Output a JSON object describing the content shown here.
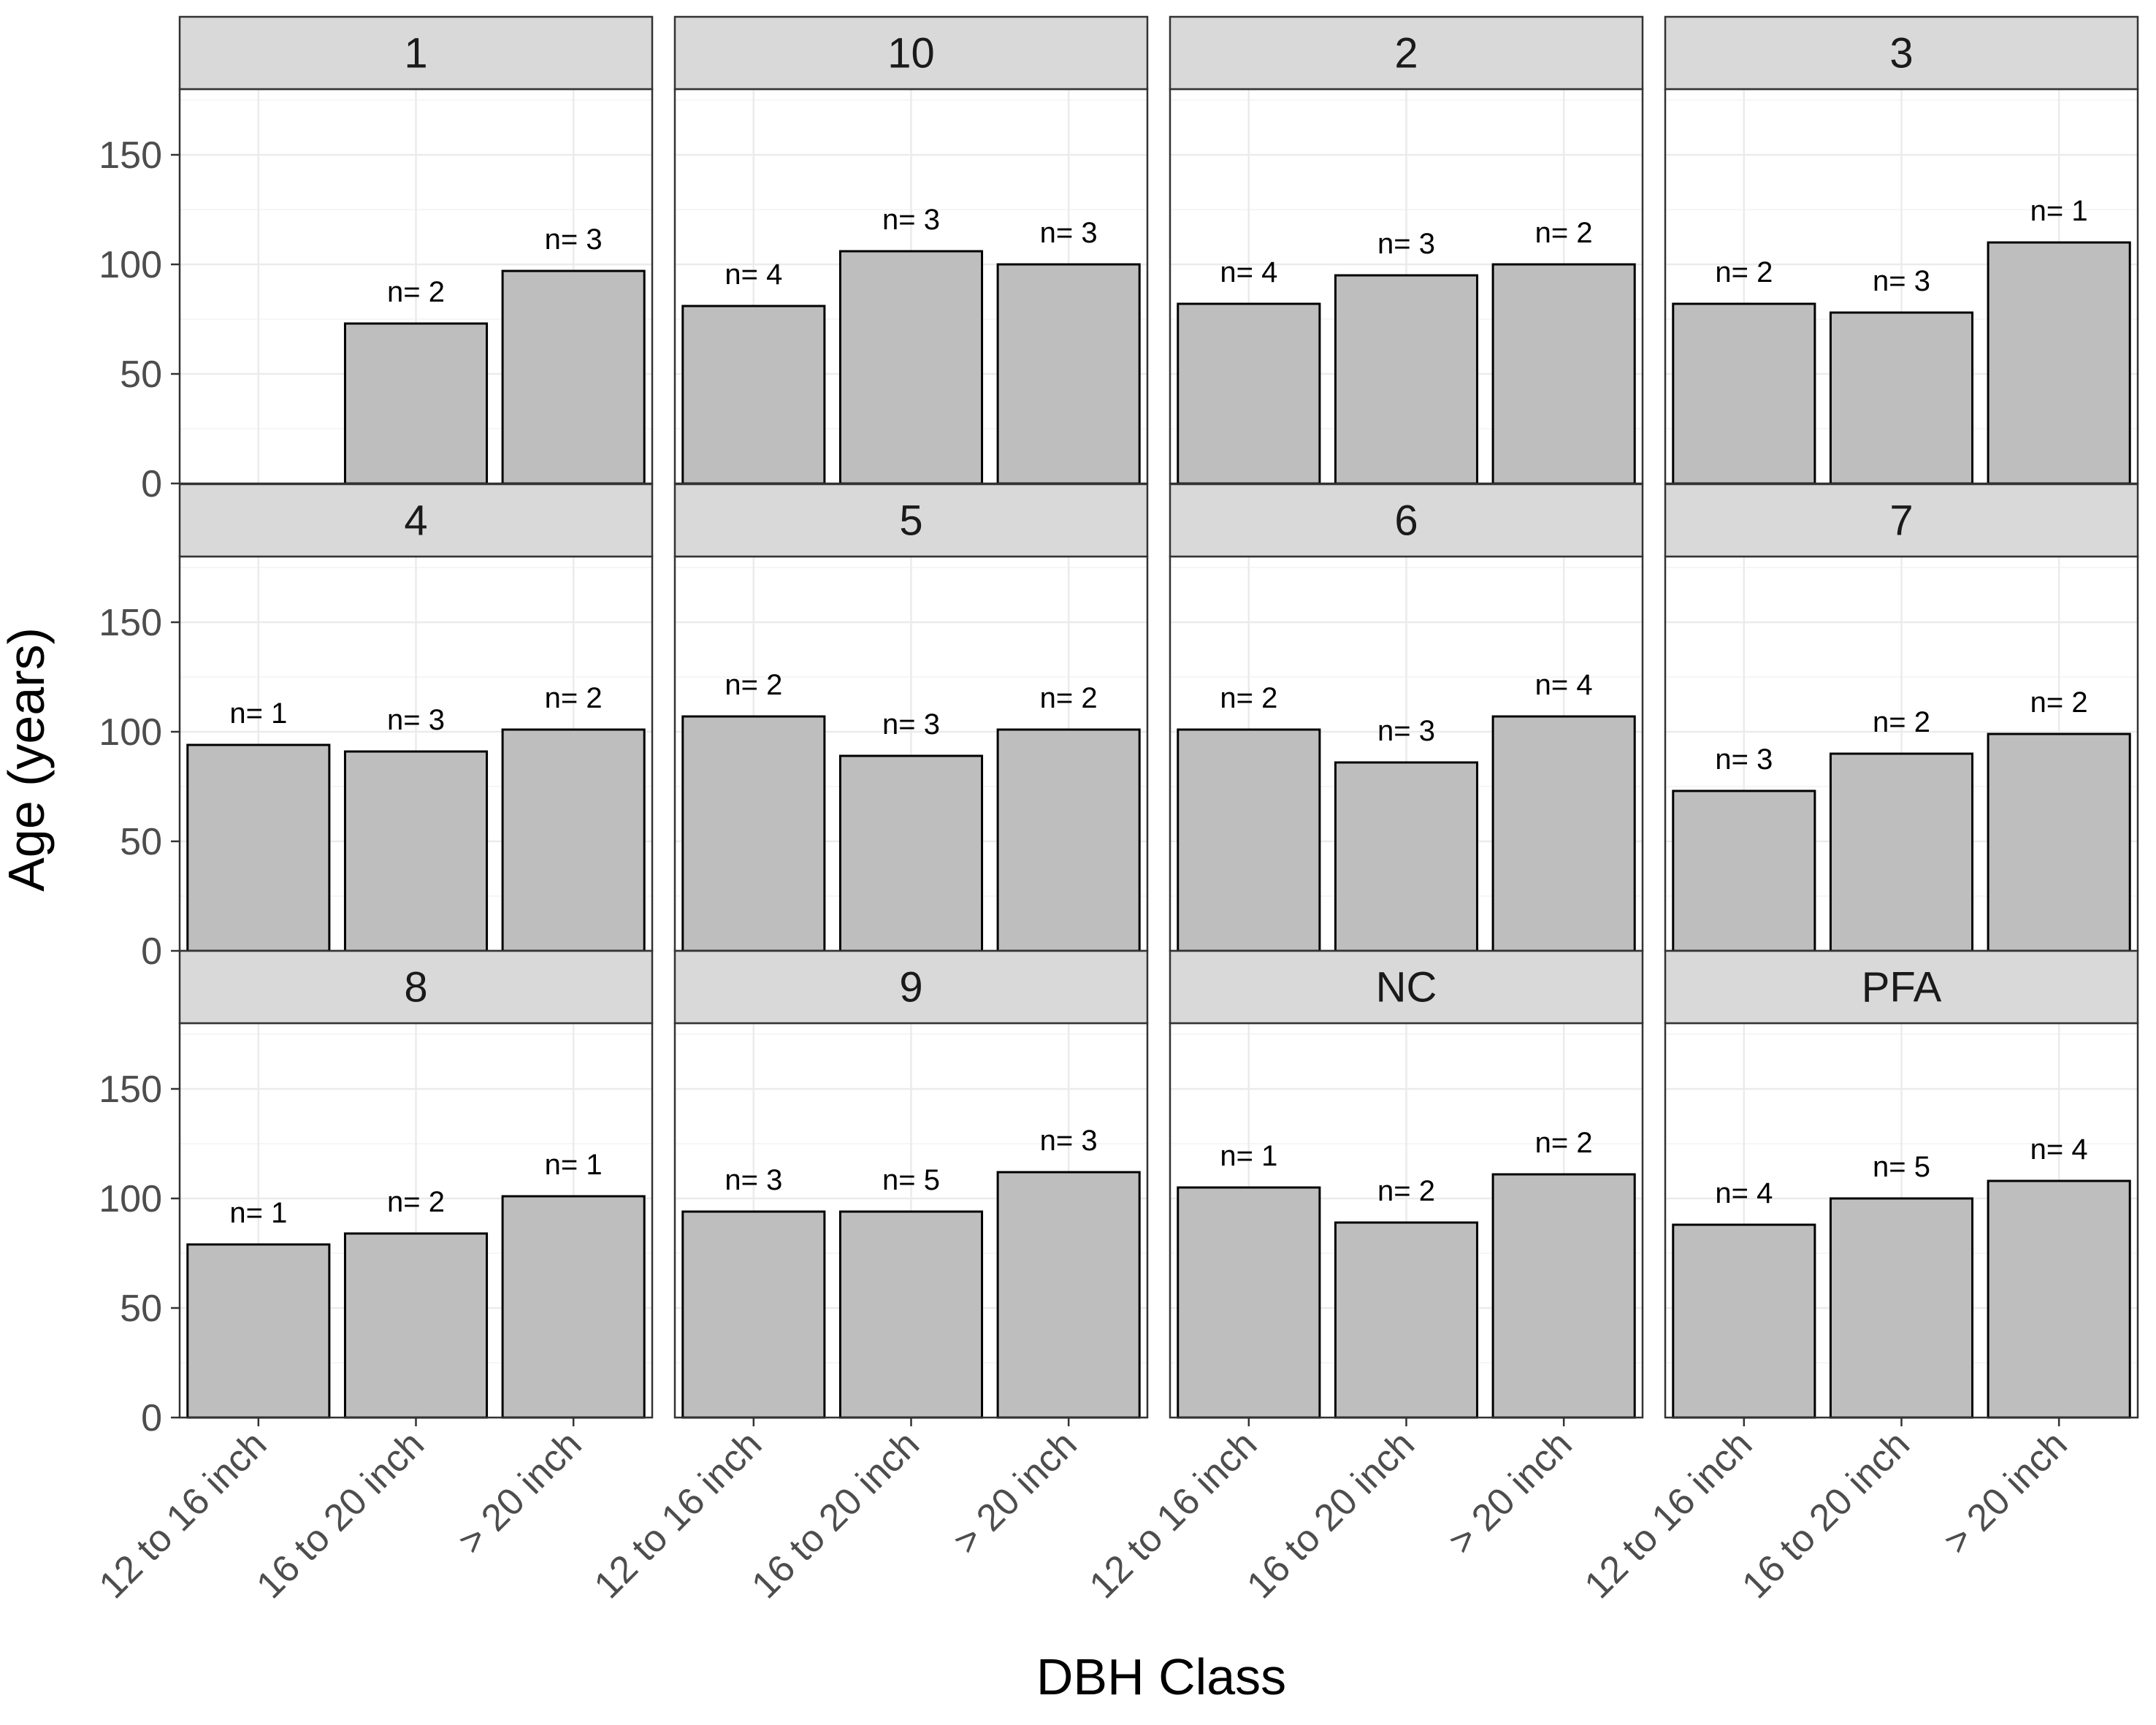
{
  "chart_data": {
    "type": "bar",
    "xlabel": "DBH Class",
    "ylabel": "Age (years)",
    "ylim": [
      0,
      180
    ],
    "yticks": [
      0,
      50,
      100,
      150
    ],
    "categories": [
      "12 to 16 inch",
      "16 to 20 inch",
      "> 20 inch"
    ],
    "grid": true,
    "colors": {
      "bar_fill": "#bebebe",
      "bar_stroke": "#000000",
      "strip_fill": "#d9d9d9",
      "grid_major": "#ebebeb",
      "grid_minor": "#f4f4f4",
      "panel_border": "#333333"
    },
    "facets": [
      {
        "label": "1",
        "values": [
          null,
          73,
          97
        ],
        "labels": [
          "",
          "n= 2",
          "n= 3"
        ]
      },
      {
        "label": "10",
        "values": [
          81,
          106,
          100
        ],
        "labels": [
          "n= 4",
          "n= 3",
          "n= 3"
        ]
      },
      {
        "label": "2",
        "values": [
          82,
          95,
          100
        ],
        "labels": [
          "n= 4",
          "n= 3",
          "n= 2"
        ]
      },
      {
        "label": "3",
        "values": [
          82,
          78,
          110
        ],
        "labels": [
          "n= 2",
          "n= 3",
          "n= 1"
        ]
      },
      {
        "label": "4",
        "values": [
          94,
          91,
          101
        ],
        "labels": [
          "n= 1",
          "n= 3",
          "n= 2"
        ]
      },
      {
        "label": "5",
        "values": [
          107,
          89,
          101
        ],
        "labels": [
          "n= 2",
          "n= 3",
          "n= 2"
        ]
      },
      {
        "label": "6",
        "values": [
          101,
          86,
          107
        ],
        "labels": [
          "n= 2",
          "n= 3",
          "n= 4"
        ]
      },
      {
        "label": "7",
        "values": [
          73,
          90,
          99
        ],
        "labels": [
          "n= 3",
          "n= 2",
          "n= 2"
        ]
      },
      {
        "label": "8",
        "values": [
          79,
          84,
          101
        ],
        "labels": [
          "n= 1",
          "n= 2",
          "n= 1"
        ]
      },
      {
        "label": "9",
        "values": [
          94,
          94,
          112
        ],
        "labels": [
          "n= 3",
          "n= 5",
          "n= 3"
        ]
      },
      {
        "label": "NC",
        "values": [
          105,
          89,
          111
        ],
        "labels": [
          "n= 1",
          "n= 2",
          "n= 2"
        ]
      },
      {
        "label": "PFA",
        "values": [
          88,
          100,
          108
        ],
        "labels": [
          "n= 4",
          "n= 5",
          "n= 4"
        ]
      }
    ]
  }
}
